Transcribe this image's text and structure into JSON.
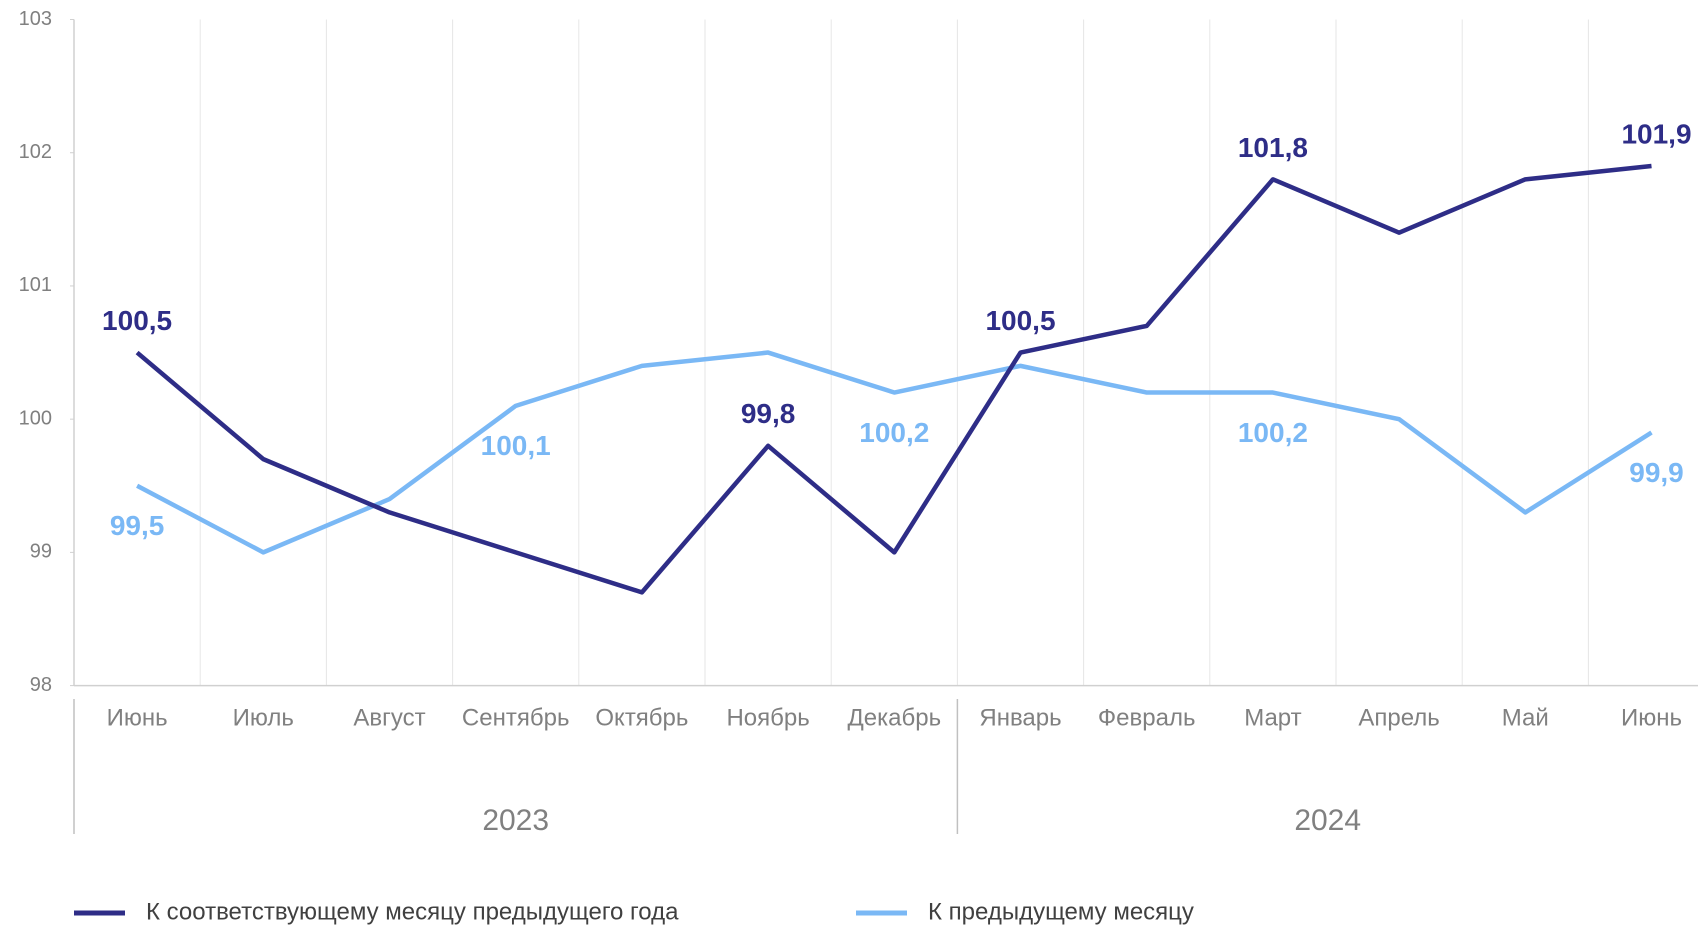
{
  "chart_data": {
    "type": "line",
    "categories": [
      "Июнь",
      "Июль",
      "Август",
      "Сентябрь",
      "Октябрь",
      "Ноябрь",
      "Декабрь",
      "Январь",
      "Февраль",
      "Март",
      "Апрель",
      "Май",
      "Июнь"
    ],
    "groups": [
      {
        "label": "2023",
        "span": 7
      },
      {
        "label": "2024",
        "span": 6
      }
    ],
    "series": [
      {
        "name": "К соответствующему месяцу предыдущего года",
        "color": "#2e2d87",
        "values": [
          100.5,
          99.7,
          99.3,
          99.0,
          98.7,
          99.8,
          99.0,
          100.5,
          100.7,
          101.8,
          101.4,
          101.8,
          101.9
        ],
        "value_labels": [
          "100,5",
          null,
          null,
          null,
          null,
          "99,8",
          null,
          "100,5",
          null,
          "101,8",
          null,
          null,
          "101,9"
        ]
      },
      {
        "name": "К предыдущему месяцу",
        "color": "#7ab8f5",
        "values": [
          99.5,
          99.0,
          99.4,
          100.1,
          100.4,
          100.5,
          100.2,
          100.4,
          100.2,
          100.2,
          100.0,
          99.3,
          99.9
        ],
        "value_labels": [
          "99,5",
          null,
          null,
          "100,1",
          null,
          null,
          "100,2",
          null,
          null,
          "100,2",
          null,
          null,
          "99,9"
        ]
      }
    ],
    "ylim": [
      98,
      103
    ],
    "yticks": [
      98,
      99,
      100,
      101,
      102,
      103
    ],
    "legend": "bottom"
  }
}
